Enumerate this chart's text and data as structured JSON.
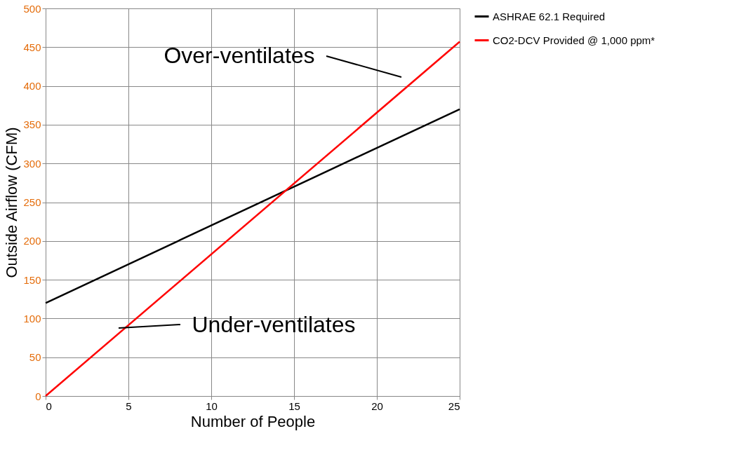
{
  "chart_data": {
    "type": "line",
    "xlabel": "Number of People",
    "ylabel": "Outside Airflow (CFM)",
    "x": [
      0,
      25
    ],
    "series": [
      {
        "name": "ASHRAE 62.1 Required",
        "color": "#000000",
        "values": [
          120,
          370
        ]
      },
      {
        "name": "CO2-DCV Provided @ 1,000 ppm*",
        "color": "#ff0000",
        "values": [
          0,
          457
        ]
      }
    ],
    "xlim": [
      0,
      25
    ],
    "xticks": [
      0,
      5,
      10,
      15,
      20,
      25
    ],
    "ylim": [
      0,
      500
    ],
    "yticks": [
      0,
      50,
      100,
      150,
      200,
      250,
      300,
      350,
      400,
      450,
      500
    ],
    "annotations": [
      "Over-ventilates",
      "Under-ventilates"
    ],
    "grid": true,
    "legend": "right",
    "marker": "none",
    "line_style": "solid"
  }
}
